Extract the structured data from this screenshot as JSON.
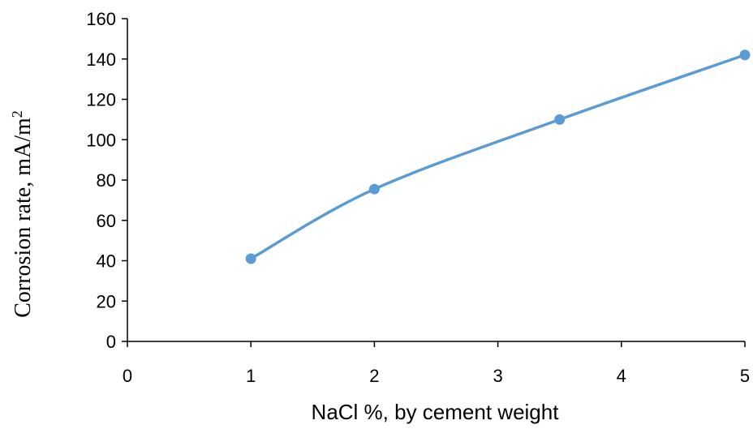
{
  "chart_data": {
    "type": "line",
    "title": "",
    "xlabel": "NaCl %, by cement weight",
    "ylabel_text": "Corrosion rate, mA/m",
    "ylabel_superscript": "2",
    "xlim": [
      0,
      5
    ],
    "ylim": [
      0,
      160
    ],
    "x_ticks": [
      "0",
      "1",
      "2",
      "3",
      "4",
      "5"
    ],
    "y_ticks": [
      "0",
      "20",
      "40",
      "60",
      "80",
      "100",
      "120",
      "140",
      "160"
    ],
    "grid": false,
    "legend": "none",
    "line_style": "smoothed",
    "series": [
      {
        "color": "#5b9bd5",
        "x": [
          1,
          2,
          3.5,
          5
        ],
        "y": [
          41,
          75.5,
          110,
          142
        ]
      }
    ]
  }
}
